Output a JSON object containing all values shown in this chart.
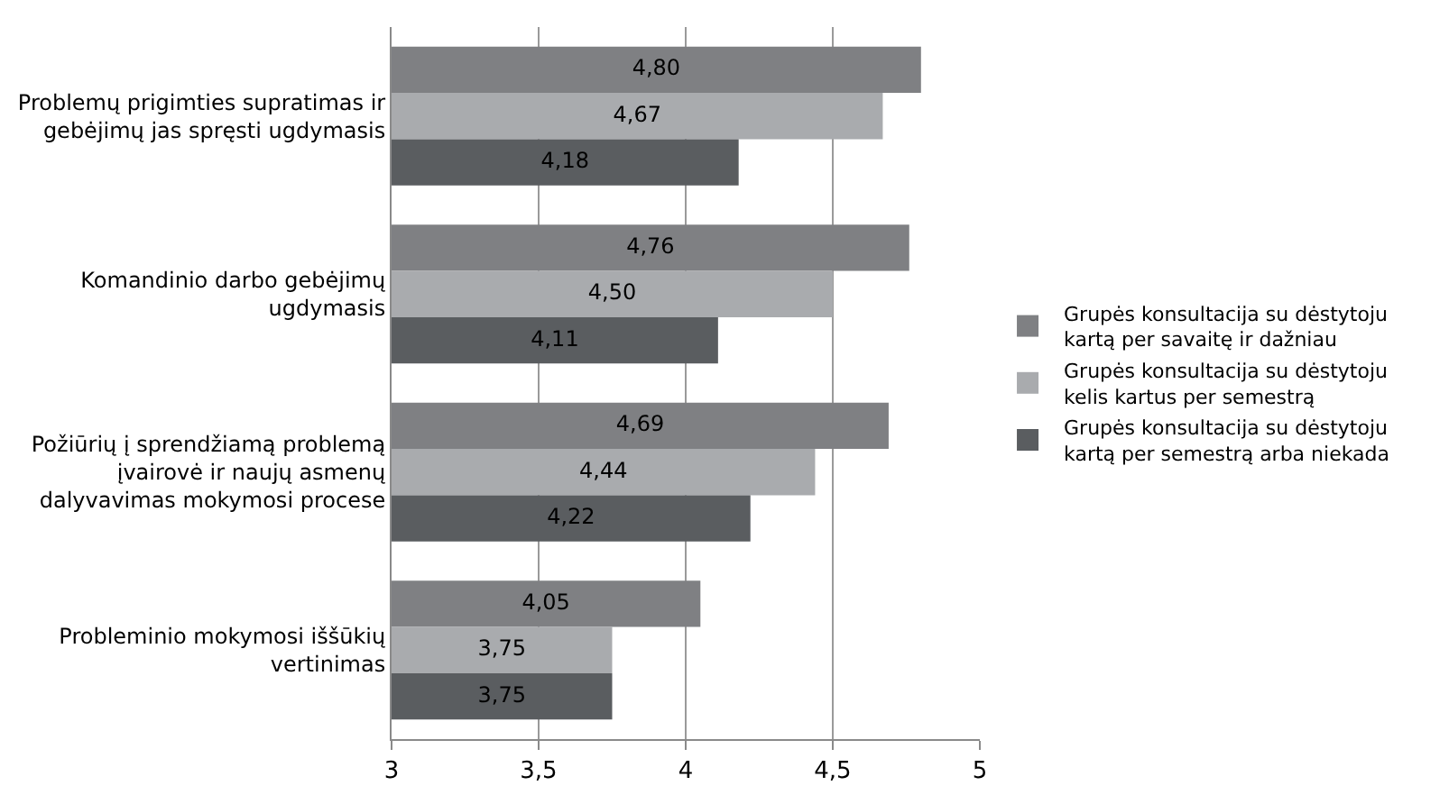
{
  "chart_data": {
    "type": "bar",
    "orientation": "horizontal",
    "categories": [
      "Problemų prigimties supratimas ir gebėjimų jas spręsti ugdymasis",
      "Komandinio darbo gebėjimų ugdymasis",
      "Požiūrių į sprendžiamą problemą įvairovė ir naujų asmenų dalyvavimas mokymosi procese",
      "Probleminio mokymosi iššūkių vertinimas"
    ],
    "series": [
      {
        "name": "Grupės konsultacija su dėstytoju kartą per savaitę ir dažniau",
        "color": "#7f8083",
        "values": [
          4.8,
          4.76,
          4.69,
          4.05
        ],
        "value_labels": [
          "4,80",
          "4,76",
          "4,69",
          "4,05"
        ]
      },
      {
        "name": "Grupės konsultacija su dėstytoju kelis kartus per semestrą",
        "color": "#a9abae",
        "values": [
          4.67,
          4.5,
          4.44,
          3.75
        ],
        "value_labels": [
          "4,67",
          "4,50",
          "4,44",
          "3,75"
        ]
      },
      {
        "name": "Grupės konsultacija su dėstytoju kartą per semestrą arba niekada",
        "color": "#5a5d60",
        "values": [
          4.18,
          4.11,
          4.22,
          3.75
        ],
        "value_labels": [
          "4,18",
          "4,11",
          "4,22",
          "3,75"
        ]
      }
    ],
    "xlim": [
      3,
      5
    ],
    "xticks": [
      3,
      {
        "value": 3.5,
        "label": "3,5"
      },
      4,
      {
        "value": 4.5,
        "label": "4,5"
      },
      5
    ],
    "grid": "x",
    "legend": "right"
  }
}
